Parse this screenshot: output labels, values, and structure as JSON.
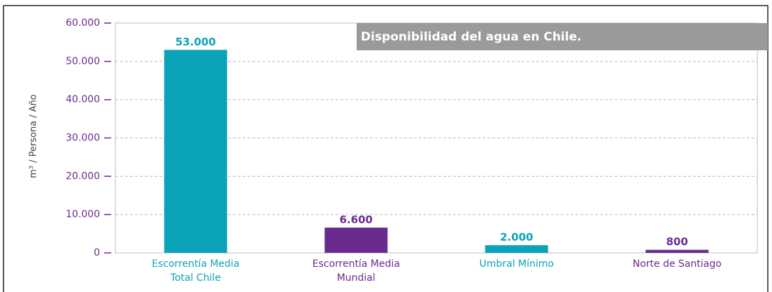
{
  "chart_data": {
    "type": "bar",
    "title": "Disponibilidad del agua en Chile.",
    "y_label": "m³ / Persona / Año",
    "categories": [
      "Escorrentía Media Total Chile",
      "Escorrentía Media Mundial",
      "Umbral Mínimo",
      "Norte de Santiago"
    ],
    "values": [
      53000,
      6600,
      2000,
      800
    ],
    "value_labels": [
      "53.000",
      "6.600",
      "2.000",
      "800"
    ],
    "colors": [
      "#0ba3b9",
      "#6a2b8f",
      "#0ba3b9",
      "#6a2b8f"
    ],
    "ylim": [
      0,
      60000
    ],
    "yticks": [
      0,
      {
        "value": 10000,
        "label": "10.000"
      },
      {
        "value": 20000,
        "label": "20.000"
      },
      {
        "value": 30000,
        "label": "30.000"
      },
      {
        "value": 40000,
        "label": "40.000"
      },
      {
        "value": 50000,
        "label": "50.000"
      },
      {
        "value": 60000,
        "label": "60.000"
      }
    ],
    "grid": true
  }
}
